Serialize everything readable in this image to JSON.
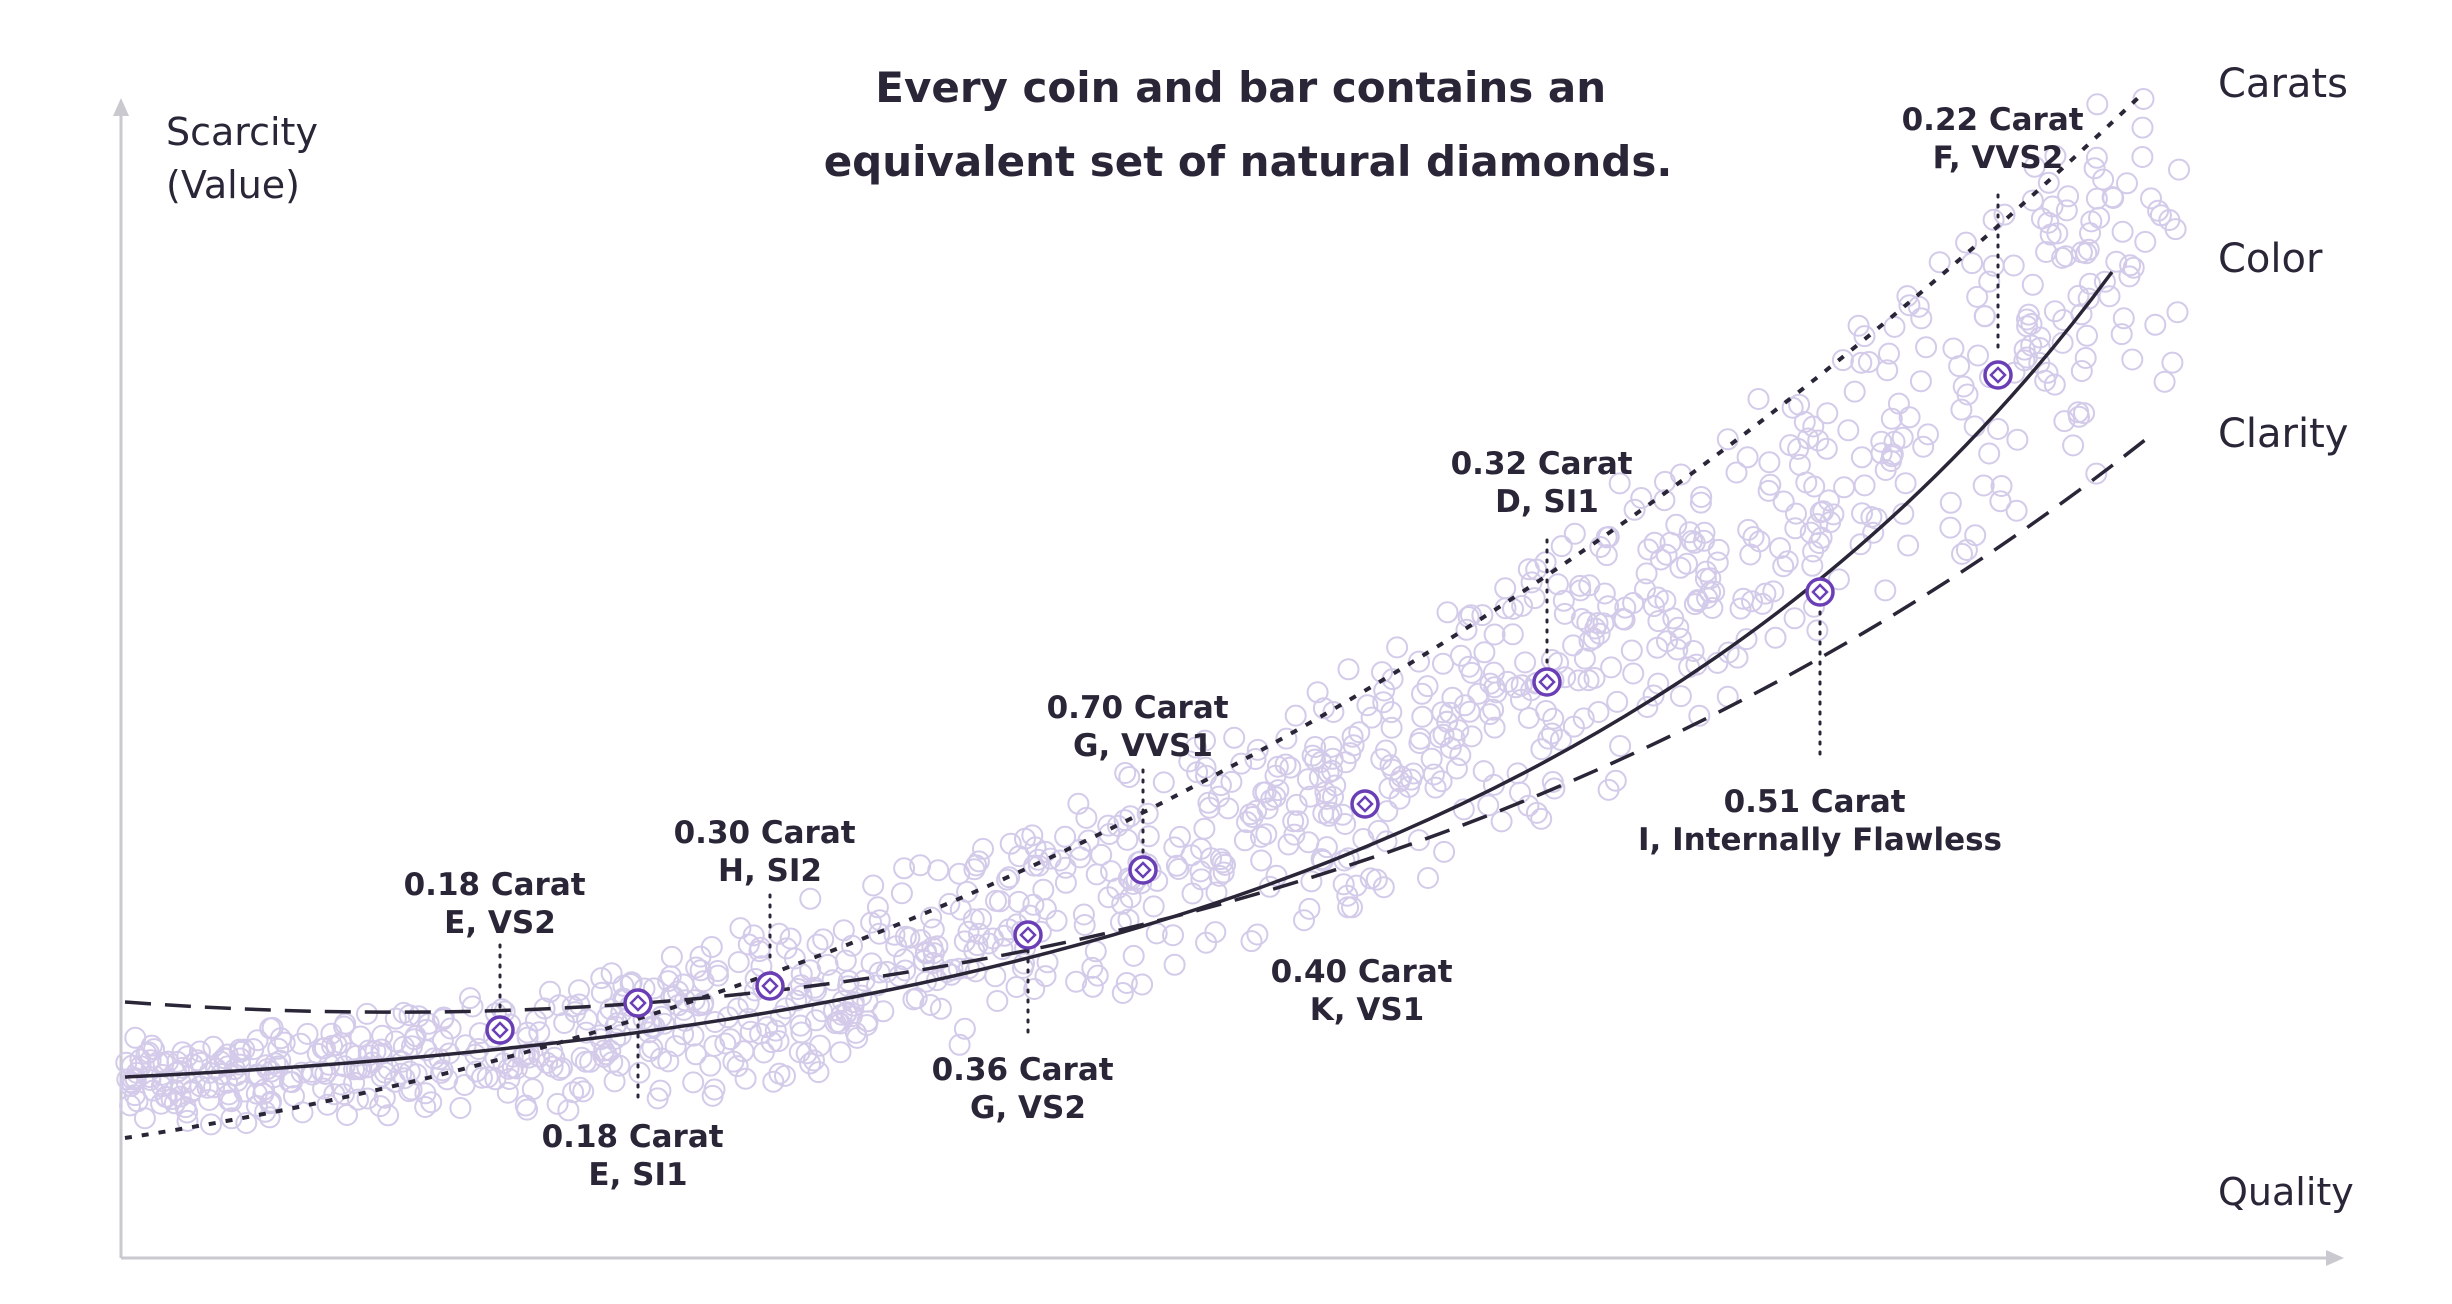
{
  "title": [
    "Every coin and bar contains an",
    "equivalent set of natural diamonds."
  ],
  "y_axis_label": [
    "Scarcity",
    "(Value)"
  ],
  "x_axis_label": "Quality",
  "curve_labels": [
    "Carats",
    "Color",
    "Clarity"
  ],
  "annotations": [
    {
      "lines": [
        "0.18 Carat",
        "E, VS2"
      ],
      "position": "above"
    },
    {
      "lines": [
        "0.18 Carat",
        "E, SI1"
      ],
      "position": "below"
    },
    {
      "lines": [
        "0.30 Carat",
        "H, SI2"
      ],
      "position": "above"
    },
    {
      "lines": [
        "0.36 Carat",
        "G, VS2"
      ],
      "position": "below"
    },
    {
      "lines": [
        "0.70 Carat",
        "G, VVS1"
      ],
      "position": "above"
    },
    {
      "lines": [
        "0.40 Carat",
        "K, VS1"
      ],
      "position": "below"
    },
    {
      "lines": [
        "0.32 Carat",
        "D, SI1"
      ],
      "position": "above"
    },
    {
      "lines": [
        "0.51 Carat",
        "I, Internally Flawless"
      ],
      "position": "below"
    },
    {
      "lines": [
        "0.22 Carat",
        "F, VVS2"
      ],
      "position": "above"
    }
  ],
  "colors": {
    "text": "#2a2638",
    "axis": "#c9c9cf",
    "scatter": "#d3cbe9",
    "marker": "#6a3fb5",
    "curve": "#2a2638"
  }
}
